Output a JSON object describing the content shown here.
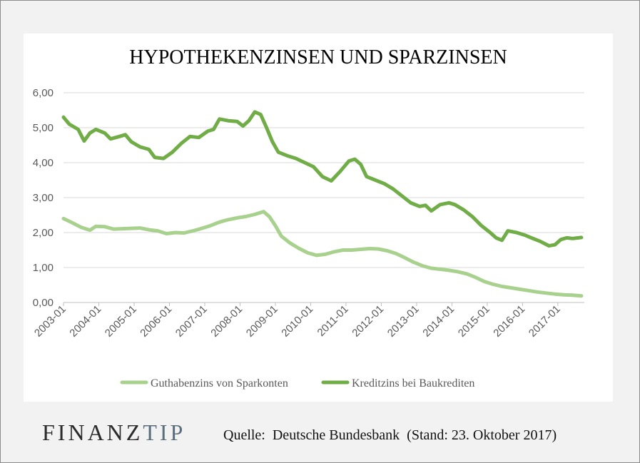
{
  "logo": {
    "part1": "FINANZ",
    "part2": "TIP"
  },
  "source": "Quelle:  Deutsche Bundesbank  (Stand: 23. Oktober 2017)",
  "chart_data": {
    "type": "line",
    "title": "HYPOTHEKENZINSEN  UND SPARZINSEN",
    "xlabel": "",
    "ylabel": "",
    "ylim": [
      0,
      6
    ],
    "yticks": [
      "0,00",
      "1,00",
      "2,00",
      "3,00",
      "4,00",
      "5,00",
      "6,00"
    ],
    "xticks": [
      "2003-01",
      "2004-01",
      "2005-01",
      "2006-01",
      "2007-01",
      "2008-01",
      "2009-01",
      "2010-01",
      "2011-01",
      "2012-01",
      "2013-01",
      "2014-01",
      "2015-01",
      "2016-01",
      "2017-01"
    ],
    "grid": "horizontal",
    "legend_position": "bottom",
    "series": [
      {
        "name": "Guthabenzins von Sparkonten",
        "color": "#a9d18e",
        "points": [
          [
            "2003-01",
            2.4
          ],
          [
            "2003-04",
            2.28
          ],
          [
            "2003-07",
            2.15
          ],
          [
            "2003-10",
            2.07
          ],
          [
            "2003-12",
            2.18
          ],
          [
            "2004-03",
            2.17
          ],
          [
            "2004-06",
            2.1
          ],
          [
            "2004-09",
            2.11
          ],
          [
            "2004-12",
            2.12
          ],
          [
            "2005-03",
            2.13
          ],
          [
            "2005-06",
            2.08
          ],
          [
            "2005-09",
            2.05
          ],
          [
            "2005-12",
            1.97
          ],
          [
            "2006-03",
            2.0
          ],
          [
            "2006-06",
            1.99
          ],
          [
            "2006-09",
            2.05
          ],
          [
            "2006-12",
            2.12
          ],
          [
            "2007-03",
            2.2
          ],
          [
            "2007-06",
            2.3
          ],
          [
            "2007-09",
            2.37
          ],
          [
            "2007-12",
            2.42
          ],
          [
            "2008-03",
            2.46
          ],
          [
            "2008-06",
            2.52
          ],
          [
            "2008-09",
            2.6
          ],
          [
            "2008-11",
            2.45
          ],
          [
            "2009-01",
            2.2
          ],
          [
            "2009-03",
            1.9
          ],
          [
            "2009-06",
            1.7
          ],
          [
            "2009-09",
            1.55
          ],
          [
            "2009-12",
            1.42
          ],
          [
            "2010-03",
            1.35
          ],
          [
            "2010-06",
            1.38
          ],
          [
            "2010-09",
            1.45
          ],
          [
            "2010-12",
            1.5
          ],
          [
            "2011-03",
            1.5
          ],
          [
            "2011-06",
            1.52
          ],
          [
            "2011-09",
            1.54
          ],
          [
            "2011-12",
            1.53
          ],
          [
            "2012-03",
            1.48
          ],
          [
            "2012-06",
            1.4
          ],
          [
            "2012-09",
            1.28
          ],
          [
            "2012-12",
            1.15
          ],
          [
            "2013-03",
            1.05
          ],
          [
            "2013-06",
            0.98
          ],
          [
            "2013-09",
            0.95
          ],
          [
            "2013-12",
            0.92
          ],
          [
            "2014-03",
            0.88
          ],
          [
            "2014-06",
            0.82
          ],
          [
            "2014-09",
            0.72
          ],
          [
            "2014-12",
            0.6
          ],
          [
            "2015-03",
            0.52
          ],
          [
            "2015-06",
            0.46
          ],
          [
            "2015-09",
            0.42
          ],
          [
            "2015-12",
            0.38
          ],
          [
            "2016-03",
            0.34
          ],
          [
            "2016-06",
            0.3
          ],
          [
            "2016-09",
            0.27
          ],
          [
            "2016-12",
            0.24
          ],
          [
            "2017-03",
            0.22
          ],
          [
            "2017-06",
            0.21
          ],
          [
            "2017-09",
            0.19
          ]
        ]
      },
      {
        "name": "Kreditzins bei Baukrediten",
        "color": "#70ad47",
        "points": [
          [
            "2003-01",
            5.3
          ],
          [
            "2003-03",
            5.1
          ],
          [
            "2003-06",
            4.95
          ],
          [
            "2003-08",
            4.62
          ],
          [
            "2003-10",
            4.85
          ],
          [
            "2003-12",
            4.95
          ],
          [
            "2004-03",
            4.85
          ],
          [
            "2004-05",
            4.68
          ],
          [
            "2004-08",
            4.75
          ],
          [
            "2004-10",
            4.8
          ],
          [
            "2004-12",
            4.6
          ],
          [
            "2005-03",
            4.45
          ],
          [
            "2005-06",
            4.38
          ],
          [
            "2005-08",
            4.15
          ],
          [
            "2005-11",
            4.12
          ],
          [
            "2006-02",
            4.3
          ],
          [
            "2006-05",
            4.55
          ],
          [
            "2006-08",
            4.75
          ],
          [
            "2006-11",
            4.72
          ],
          [
            "2007-02",
            4.9
          ],
          [
            "2007-04",
            4.95
          ],
          [
            "2007-06",
            5.25
          ],
          [
            "2007-09",
            5.2
          ],
          [
            "2007-12",
            5.18
          ],
          [
            "2008-02",
            5.05
          ],
          [
            "2008-04",
            5.2
          ],
          [
            "2008-06",
            5.45
          ],
          [
            "2008-08",
            5.38
          ],
          [
            "2008-10",
            5.0
          ],
          [
            "2008-12",
            4.6
          ],
          [
            "2009-02",
            4.3
          ],
          [
            "2009-05",
            4.2
          ],
          [
            "2009-08",
            4.12
          ],
          [
            "2009-11",
            4.0
          ],
          [
            "2010-02",
            3.88
          ],
          [
            "2010-05",
            3.6
          ],
          [
            "2010-08",
            3.48
          ],
          [
            "2010-11",
            3.75
          ],
          [
            "2011-02",
            4.05
          ],
          [
            "2011-04",
            4.1
          ],
          [
            "2011-06",
            3.95
          ],
          [
            "2011-08",
            3.6
          ],
          [
            "2011-11",
            3.5
          ],
          [
            "2012-02",
            3.4
          ],
          [
            "2012-05",
            3.25
          ],
          [
            "2012-08",
            3.05
          ],
          [
            "2012-11",
            2.85
          ],
          [
            "2013-02",
            2.75
          ],
          [
            "2013-04",
            2.78
          ],
          [
            "2013-06",
            2.62
          ],
          [
            "2013-09",
            2.8
          ],
          [
            "2013-12",
            2.85
          ],
          [
            "2014-02",
            2.8
          ],
          [
            "2014-05",
            2.65
          ],
          [
            "2014-08",
            2.45
          ],
          [
            "2014-11",
            2.2
          ],
          [
            "2015-02",
            2.0
          ],
          [
            "2015-04",
            1.85
          ],
          [
            "2015-06",
            1.78
          ],
          [
            "2015-08",
            2.05
          ],
          [
            "2015-11",
            2.0
          ],
          [
            "2016-02",
            1.92
          ],
          [
            "2016-04",
            1.85
          ],
          [
            "2016-07",
            1.75
          ],
          [
            "2016-10",
            1.62
          ],
          [
            "2016-12",
            1.65
          ],
          [
            "2017-02",
            1.8
          ],
          [
            "2017-04",
            1.85
          ],
          [
            "2017-06",
            1.83
          ],
          [
            "2017-09",
            1.86
          ]
        ]
      }
    ]
  }
}
